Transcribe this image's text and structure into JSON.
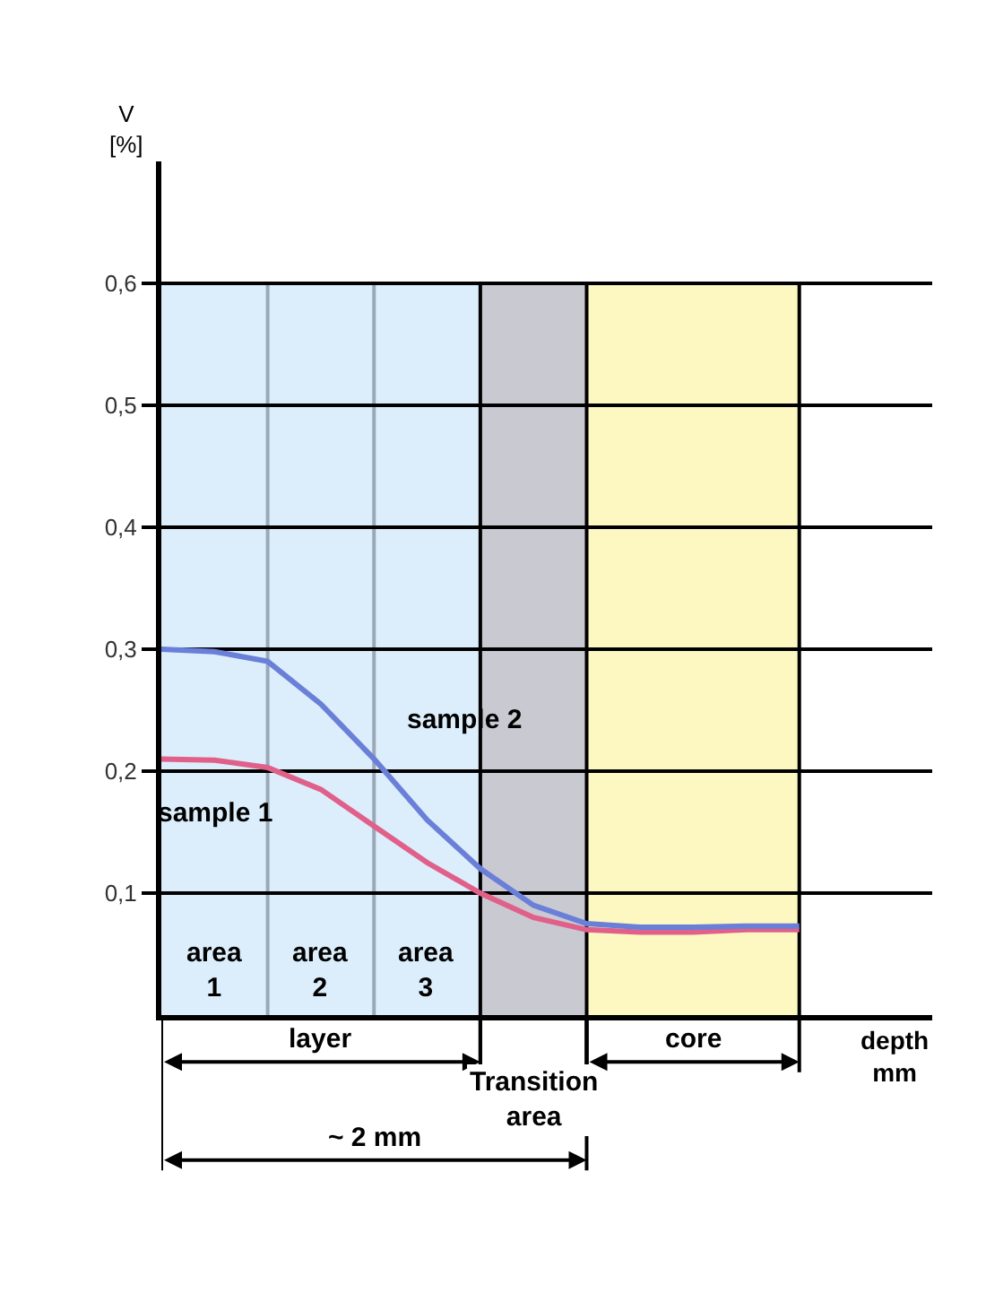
{
  "chart_data": {
    "type": "line",
    "ylabel": "V\n[%]",
    "xlabel": "depth\nmm",
    "categories": [
      null,
      null,
      null,
      null,
      null,
      null,
      null,
      null,
      null,
      null,
      null,
      null,
      null
    ],
    "series": [
      {
        "name": "sample 1",
        "color": "#e0608a",
        "values": [
          0.21,
          0.209,
          0.203,
          0.185,
          0.155,
          0.125,
          0.1,
          0.08,
          0.07,
          0.068,
          0.068,
          0.07,
          0.07
        ]
      },
      {
        "name": "sample 2",
        "color": "#6a7fd8",
        "values": [
          0.3,
          0.298,
          0.29,
          0.255,
          0.21,
          0.16,
          0.12,
          0.09,
          0.075,
          0.072,
          0.072,
          0.073,
          0.073
        ]
      }
    ],
    "ylim": [
      0,
      0.7
    ],
    "yticks": [
      {
        "value": 0.1,
        "label": "0,1"
      },
      {
        "value": 0.2,
        "label": "0,2"
      },
      {
        "value": 0.3,
        "label": "0,3"
      },
      {
        "value": 0.4,
        "label": "0,4"
      },
      {
        "value": 0.5,
        "label": "0,5"
      },
      {
        "value": 0.6,
        "label": "0,6"
      }
    ],
    "tick_labels": "y",
    "grid": true,
    "annotations": [
      "area\n1",
      "area\n2",
      "area\n3",
      "layer",
      "Transition\narea",
      "core",
      "~ 2 mm"
    ],
    "line_style": "solid",
    "marker": "none"
  }
}
